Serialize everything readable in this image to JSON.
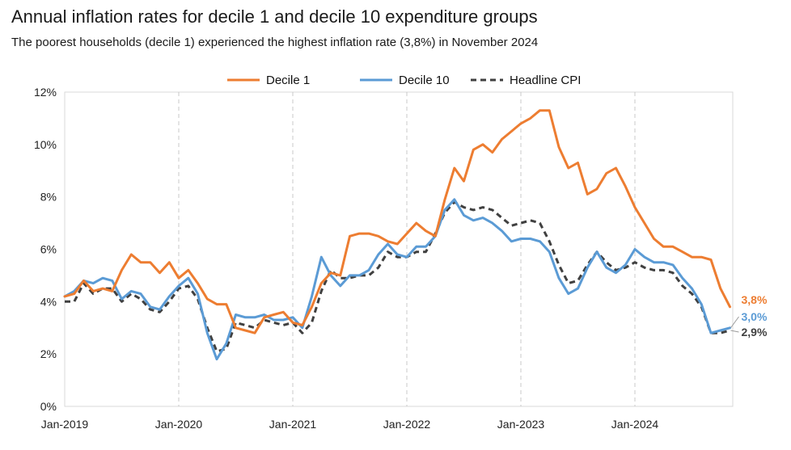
{
  "chart_data": {
    "type": "line",
    "title": "Annual inflation rates for decile 1 and decile 10 expenditure groups",
    "subtitle": "The poorest households (decile 1) experienced the highest inflation rate (3,8%) in November 2024",
    "x_start": "2019-01",
    "x_ticks": [
      "Jan-2019",
      "Jan-2020",
      "Jan-2021",
      "Jan-2022",
      "Jan-2023",
      "Jan-2024"
    ],
    "y_ticks": [
      "0%",
      "2%",
      "4%",
      "6%",
      "8%",
      "10%",
      "12%"
    ],
    "ylim": [
      0,
      12
    ],
    "legend_position": "top-center",
    "grid": "vertical",
    "colors": {
      "decile1": "#ED7D31",
      "decile10": "#5B9BD5",
      "cpi": "#404040",
      "grid": "#d9d9d9"
    },
    "series": [
      {
        "name": "Decile 1",
        "key": "decile1",
        "dashed": false,
        "end_label": "3,8%",
        "values": [
          4.2,
          4.3,
          4.8,
          4.4,
          4.5,
          4.4,
          5.2,
          5.8,
          5.5,
          5.5,
          5.1,
          5.5,
          4.9,
          5.2,
          4.7,
          4.1,
          3.9,
          3.9,
          3.0,
          2.9,
          2.8,
          3.4,
          3.5,
          3.6,
          3.2,
          3.1,
          3.8,
          4.7,
          5.1,
          5.0,
          6.5,
          6.6,
          6.6,
          6.5,
          6.3,
          6.2,
          6.6,
          7.0,
          6.7,
          6.5,
          7.9,
          9.1,
          8.6,
          9.8,
          10.0,
          9.7,
          10.2,
          10.5,
          10.8,
          11.0,
          11.3,
          11.3,
          9.9,
          9.1,
          9.3,
          8.1,
          8.3,
          8.9,
          9.1,
          8.4,
          7.6,
          7.0,
          6.4,
          6.1,
          6.1,
          5.9,
          5.7,
          5.7,
          5.6,
          4.5,
          3.8
        ]
      },
      {
        "name": "Decile 10",
        "key": "decile10",
        "dashed": false,
        "end_label": "3,0%",
        "values": [
          4.2,
          4.4,
          4.8,
          4.7,
          4.9,
          4.8,
          4.1,
          4.4,
          4.3,
          3.8,
          3.7,
          4.2,
          4.6,
          4.9,
          4.3,
          2.8,
          1.8,
          2.4,
          3.5,
          3.4,
          3.4,
          3.5,
          3.3,
          3.3,
          3.4,
          3.0,
          4.2,
          5.7,
          5.0,
          4.6,
          5.0,
          5.0,
          5.2,
          5.8,
          6.2,
          5.8,
          5.7,
          6.1,
          6.1,
          6.5,
          7.5,
          7.9,
          7.3,
          7.1,
          7.2,
          7.0,
          6.7,
          6.3,
          6.4,
          6.4,
          6.3,
          5.9,
          4.9,
          4.3,
          4.5,
          5.3,
          5.9,
          5.3,
          5.1,
          5.4,
          6.0,
          5.7,
          5.5,
          5.5,
          5.4,
          4.9,
          4.5,
          3.9,
          2.8,
          2.9,
          3.0
        ]
      },
      {
        "name": "Headline CPI",
        "key": "cpi",
        "dashed": true,
        "end_label": "2,9%",
        "values": [
          4.0,
          4.0,
          4.7,
          4.3,
          4.5,
          4.5,
          4.0,
          4.3,
          4.1,
          3.7,
          3.6,
          4.0,
          4.5,
          4.6,
          4.1,
          3.0,
          2.1,
          2.2,
          3.2,
          3.1,
          3.0,
          3.3,
          3.2,
          3.1,
          3.2,
          2.8,
          3.2,
          4.4,
          5.2,
          4.9,
          4.9,
          5.0,
          5.0,
          5.3,
          5.9,
          5.7,
          5.7,
          5.9,
          5.9,
          6.6,
          7.4,
          7.8,
          7.6,
          7.5,
          7.6,
          7.5,
          7.2,
          6.9,
          7.0,
          7.1,
          7.0,
          6.3,
          5.4,
          4.7,
          4.8,
          5.4,
          5.9,
          5.5,
          5.2,
          5.3,
          5.5,
          5.3,
          5.2,
          5.2,
          5.1,
          4.6,
          4.3,
          3.8,
          2.8,
          2.8,
          2.9
        ]
      }
    ]
  }
}
